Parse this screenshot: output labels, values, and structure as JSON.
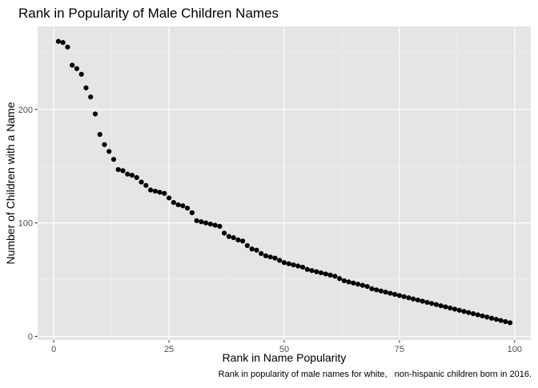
{
  "chart_data": {
    "type": "scatter",
    "title": "Rank in Popularity of Male Children Names",
    "xlabel": "Rank in Name Popularity",
    "ylabel": "Number of Children with a Name",
    "caption": "Rank in popularity of male names for white,   non-hispanic children born in 2016.",
    "xlim": [
      -3.5,
      103.5
    ],
    "ylim": [
      -3.2,
      273.2
    ],
    "x_ticks": [
      0,
      25,
      50,
      75,
      100
    ],
    "y_ticks": [
      0,
      100,
      200
    ],
    "grid": true,
    "legend": "none",
    "point_color": "#000000",
    "panel_background": "#e5e5e5",
    "x": [
      1,
      2,
      3,
      4,
      5,
      6,
      7,
      8,
      9,
      10,
      11,
      12,
      13,
      14,
      15,
      16,
      17,
      18,
      19,
      20,
      21,
      22,
      23,
      24,
      25,
      26,
      27,
      28,
      29,
      30,
      31,
      32,
      33,
      34,
      35,
      36,
      37,
      38,
      39,
      40,
      41,
      42,
      43,
      44,
      45,
      46,
      47,
      48,
      49,
      50,
      51,
      52,
      53,
      54,
      55,
      56,
      57,
      58,
      59,
      60,
      61,
      62,
      63,
      64,
      65,
      66,
      67,
      68,
      69,
      70,
      71,
      72,
      73,
      74,
      75,
      76,
      77,
      78,
      79,
      80,
      81,
      82,
      83,
      84,
      85,
      86,
      87,
      88,
      89,
      90,
      91,
      92,
      93,
      94,
      95,
      96,
      97,
      98,
      99
    ],
    "y": [
      260,
      259,
      255,
      239,
      236,
      231,
      219,
      211,
      196,
      178,
      169,
      163,
      156,
      147,
      146,
      143,
      142,
      140,
      136,
      133,
      129,
      128,
      127,
      126,
      122,
      118,
      116,
      115,
      113,
      109,
      102,
      101,
      100,
      99,
      98,
      97,
      91,
      88,
      87,
      85,
      84,
      80,
      77,
      76,
      73,
      71,
      70,
      69,
      67,
      65,
      64,
      63,
      62,
      61,
      59,
      58,
      57,
      56,
      55,
      54,
      53,
      51,
      49,
      48,
      47,
      46,
      45,
      44,
      42,
      41,
      40,
      39,
      38,
      37,
      36,
      35,
      34,
      33,
      32,
      31,
      30,
      29,
      28,
      27,
      26,
      25,
      24,
      23,
      22,
      21,
      20,
      19,
      18,
      17,
      16,
      15,
      14,
      13,
      12
    ]
  }
}
